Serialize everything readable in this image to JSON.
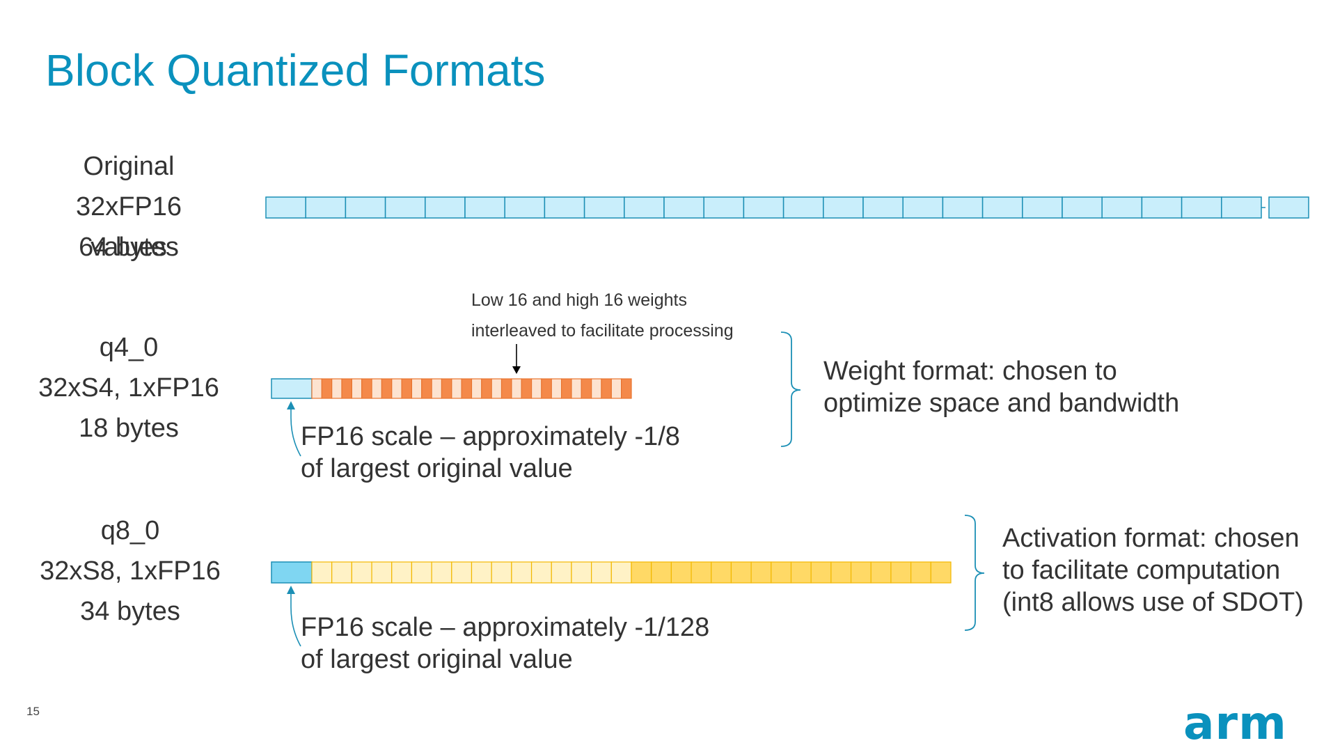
{
  "slide": {
    "title": "Block Quantized Formats",
    "page_number": "15",
    "logo_text": "arm"
  },
  "rows": {
    "original": {
      "label_lines": [
        "Original",
        "32xFP16 values",
        "64 bytes"
      ],
      "cells_drawn": 26
    },
    "q4_0": {
      "label_lines": [
        "q4_0",
        "32xS4, 1xFP16",
        "18 bytes"
      ],
      "note_lines": [
        "Low 16 and high 16 weights",
        "interleaved to facilitate processing"
      ],
      "scale_caption_lines": [
        "FP16 scale – approximately -1/8",
        "of largest original value"
      ],
      "group_caption_lines": [
        "Weight format: chosen to",
        "optimize space and bandwidth"
      ],
      "nibble_cells": 32
    },
    "q8_0": {
      "label_lines": [
        "q8_0",
        "32xS8, 1xFP16",
        "34 bytes"
      ],
      "scale_caption_lines": [
        "FP16 scale – approximately -1/128",
        "of largest original value"
      ],
      "group_caption_lines": [
        "Activation format: chosen",
        "to facilitate computation",
        "(int8 allows use of SDOT)"
      ],
      "byte_cells": 32
    }
  },
  "colors": {
    "title": "#0a91bd",
    "fp16_fill": "#c9eefb",
    "fp16_scale_fill": "#7fd6f2",
    "fp16_stroke": "#1b8fb5",
    "q4_dark": "#f4894a",
    "q4_light": "#fde3d0",
    "q4_stroke": "#e8742f",
    "q8_light": "#fff2c6",
    "q8_dark": "#ffd966",
    "q8_stroke": "#f2b800",
    "bracket": "#1b8fb5"
  }
}
